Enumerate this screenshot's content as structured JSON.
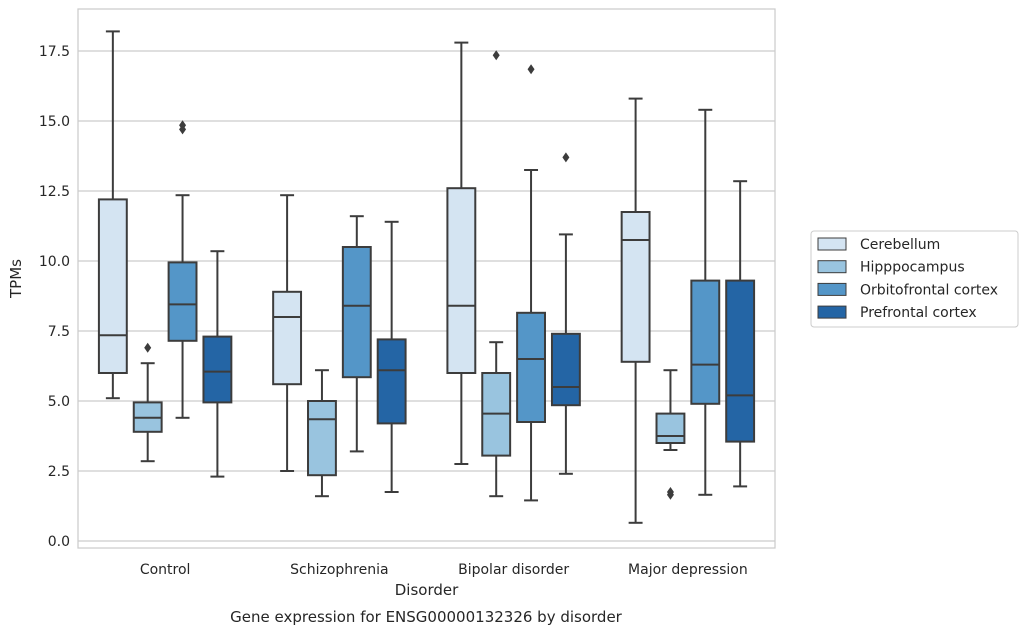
{
  "chart_data": {
    "type": "boxplot",
    "title": "",
    "caption": "Gene expression for ENSG00000132326 by disorder",
    "xlabel": "Disorder",
    "ylabel": "TPMs",
    "ylim": [
      -0.25,
      19.0
    ],
    "yticks": [
      0.0,
      2.5,
      5.0,
      7.5,
      10.0,
      12.5,
      15.0,
      17.5
    ],
    "ytick_labels": [
      "0.0",
      "2.5",
      "5.0",
      "7.5",
      "10.0",
      "12.5",
      "15.0",
      "17.5"
    ],
    "grid": "horizontal",
    "legend_position": "right",
    "categories": [
      "Control",
      "Schizophrenia",
      "Bipolar disorder",
      "Major depression"
    ],
    "series": [
      {
        "name": "Cerebellum",
        "color": "#d4e4f2",
        "boxes": [
          {
            "whislo": 5.1,
            "q1": 6.0,
            "med": 7.35,
            "q3": 12.2,
            "whishi": 18.2,
            "fliers": []
          },
          {
            "whislo": 2.5,
            "q1": 5.6,
            "med": 8.0,
            "q3": 8.9,
            "whishi": 12.35,
            "fliers": []
          },
          {
            "whislo": 2.75,
            "q1": 6.0,
            "med": 8.4,
            "q3": 12.6,
            "whishi": 17.8,
            "fliers": []
          },
          {
            "whislo": 0.65,
            "q1": 6.4,
            "med": 10.75,
            "q3": 11.75,
            "whishi": 15.8,
            "fliers": []
          }
        ]
      },
      {
        "name": "Hipppocampus",
        "color": "#99c4df",
        "boxes": [
          {
            "whislo": 2.85,
            "q1": 3.9,
            "med": 4.4,
            "q3": 4.95,
            "whishi": 6.35,
            "fliers": [
              6.9
            ]
          },
          {
            "whislo": 1.6,
            "q1": 2.35,
            "med": 4.35,
            "q3": 5.0,
            "whishi": 6.1,
            "fliers": []
          },
          {
            "whislo": 1.6,
            "q1": 3.05,
            "med": 4.55,
            "q3": 6.0,
            "whishi": 7.1,
            "fliers": [
              17.35
            ]
          },
          {
            "whislo": 3.25,
            "q1": 3.5,
            "med": 3.75,
            "q3": 4.55,
            "whishi": 6.1,
            "fliers": [
              1.65,
              1.75
            ]
          }
        ]
      },
      {
        "name": "Orbitofrontal cortex",
        "color": "#5496c8",
        "boxes": [
          {
            "whislo": 4.4,
            "q1": 7.15,
            "med": 8.45,
            "q3": 9.95,
            "whishi": 12.35,
            "fliers": [
              14.7,
              14.85
            ]
          },
          {
            "whislo": 3.2,
            "q1": 5.85,
            "med": 8.4,
            "q3": 10.5,
            "whishi": 11.6,
            "fliers": []
          },
          {
            "whislo": 1.45,
            "q1": 4.25,
            "med": 6.5,
            "q3": 8.15,
            "whishi": 13.25,
            "fliers": [
              16.85
            ]
          },
          {
            "whislo": 1.65,
            "q1": 4.9,
            "med": 6.3,
            "q3": 9.3,
            "whishi": 15.4,
            "fliers": []
          }
        ]
      },
      {
        "name": "Prefrontal cortex",
        "color": "#2465a5",
        "boxes": [
          {
            "whislo": 2.3,
            "q1": 4.95,
            "med": 6.05,
            "q3": 7.3,
            "whishi": 10.35,
            "fliers": []
          },
          {
            "whislo": 1.75,
            "q1": 4.2,
            "med": 6.1,
            "q3": 7.2,
            "whishi": 11.4,
            "fliers": []
          },
          {
            "whislo": 2.4,
            "q1": 4.85,
            "med": 5.5,
            "q3": 7.4,
            "whishi": 10.95,
            "fliers": [
              13.7
            ]
          },
          {
            "whislo": 1.95,
            "q1": 3.55,
            "med": 5.2,
            "q3": 9.3,
            "whishi": 12.85,
            "fliers": []
          }
        ]
      }
    ]
  }
}
